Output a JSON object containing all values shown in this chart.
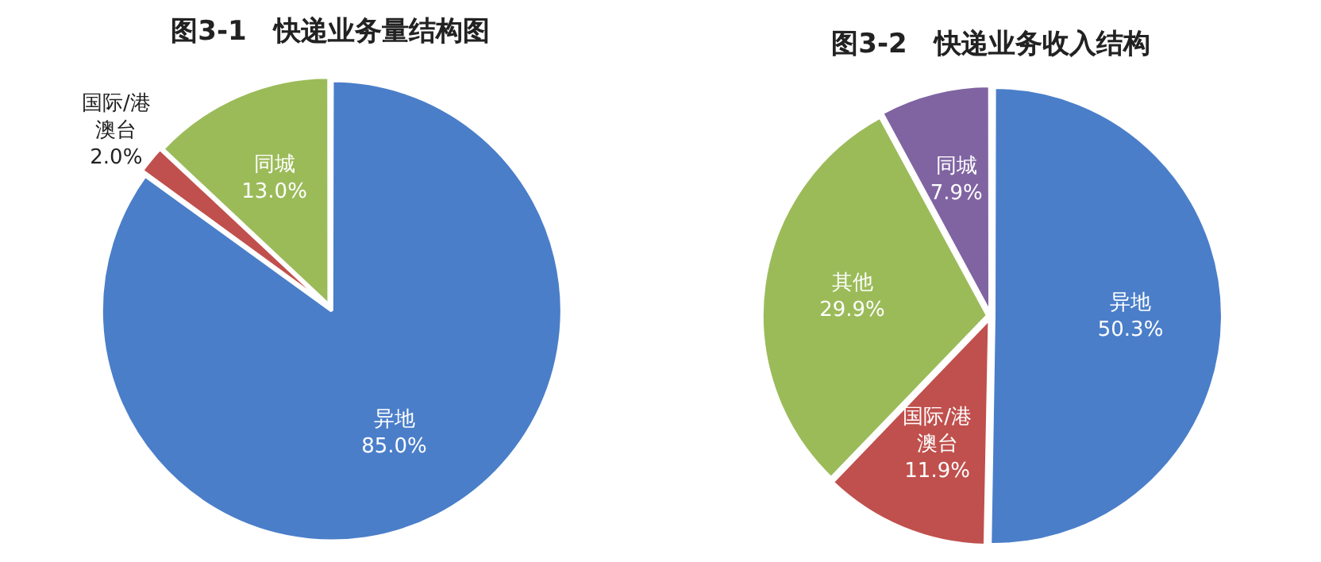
{
  "chart_data": [
    {
      "type": "pie",
      "title": "图3-1　快递业务量结构图",
      "categories": [
        "异地",
        "国际/港澳台",
        "同城"
      ],
      "values": [
        85.0,
        2.0,
        13.0
      ],
      "colors": [
        "#4a7ec9",
        "#c0504d",
        "#9bbb59"
      ],
      "value_labels": [
        "85.0%",
        "2.0%",
        "13.0%"
      ],
      "legend": false
    },
    {
      "type": "pie",
      "title": "图3-2　快递业务收入结构",
      "categories": [
        "异地",
        "国际/港澳台",
        "其他",
        "同城"
      ],
      "values": [
        50.3,
        11.9,
        29.9,
        7.9
      ],
      "colors": [
        "#4a7ec9",
        "#c0504d",
        "#9bbb59",
        "#8064a2"
      ],
      "value_labels": [
        "50.3%",
        "11.9%",
        "29.9%",
        "7.9%"
      ],
      "legend": false
    }
  ]
}
